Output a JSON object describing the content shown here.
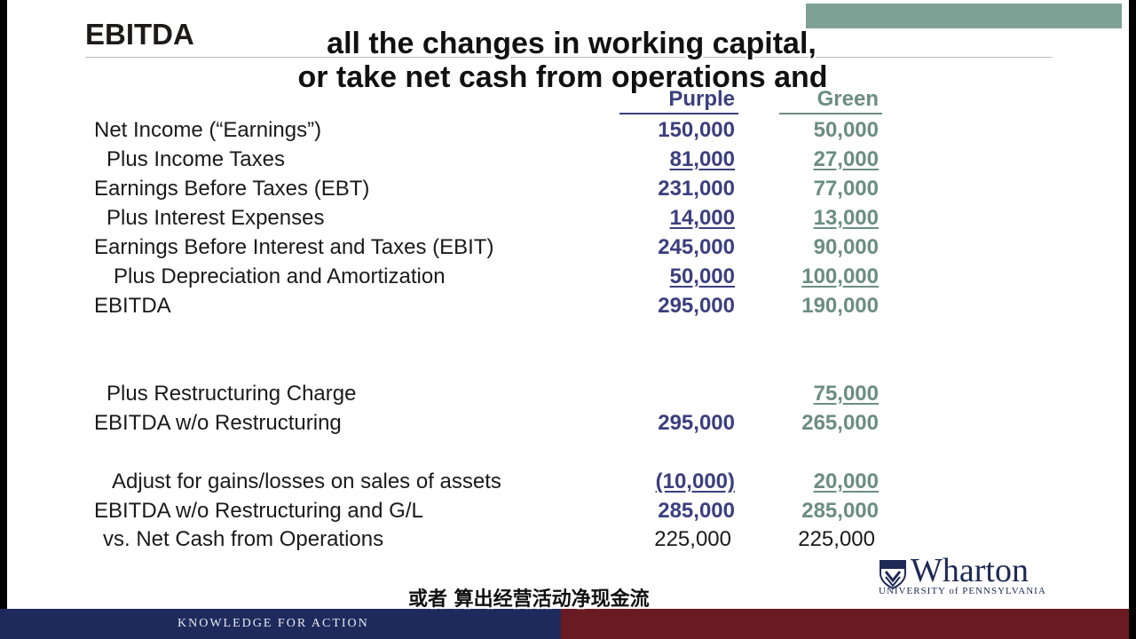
{
  "slide": {
    "title": "EBITDA",
    "columns": {
      "purple": "Purple",
      "green": "Green"
    },
    "rows": [
      {
        "label": "Net Income (“Earnings”)",
        "purple": "150,000",
        "green": "50,000"
      },
      {
        "label": "Plus Income Taxes",
        "purple": "81,000",
        "green": "27,000"
      },
      {
        "label": "Earnings Before Taxes (EBT)",
        "purple": "231,000",
        "green": "77,000"
      },
      {
        "label": "Plus Interest Expenses",
        "purple": "14,000",
        "green": "13,000"
      },
      {
        "label": "Earnings Before Interest and Taxes (EBIT)",
        "purple": "245,000",
        "green": "90,000"
      },
      {
        "label": "Plus Depreciation and Amortization",
        "purple": "50,000",
        "green": "100,000"
      },
      {
        "label": "EBITDA",
        "purple": "295,000",
        "green": "190,000"
      },
      {
        "label": "Plus Restructuring Charge",
        "purple": "",
        "green": "75,000"
      },
      {
        "label": "EBITDA w/o Restructuring",
        "purple": "295,000",
        "green": "265,000"
      },
      {
        "label": "Adjust for gains/losses on sales of assets",
        "purple": "(10,000)",
        "green": "20,000"
      },
      {
        "label": "EBITDA w/o Restructuring and G/L",
        "purple": "285,000",
        "green": "285,000"
      },
      {
        "label": "vs.  Net Cash from Operations",
        "purple": "225,000",
        "green": "225,000"
      }
    ],
    "logo": {
      "name": "Wharton",
      "sub": "UNIVERSITY of PENNSYLVANIA"
    },
    "tagline": "KNOWLEDGE FOR ACTION"
  },
  "captions": {
    "line1": "all the changes in working capital,",
    "line2": "or take net cash from operations and",
    "subtitle_zh": "或者 算出经营活动净现金流"
  },
  "colors": {
    "purple": "#3b3f7e",
    "green": "#6b8d82",
    "navy_bar": "#1e2a5c",
    "maroon_bar": "#6a1a23"
  }
}
